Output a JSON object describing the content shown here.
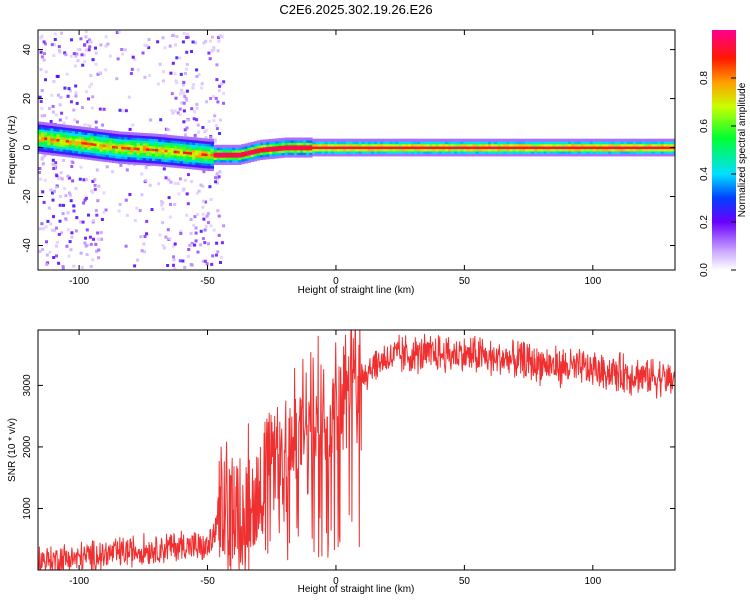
{
  "title": "C2E6.2025.302.19.26.E26",
  "chart_data": [
    {
      "type": "heatmap",
      "name": "spectrogram",
      "xlabel": "Height of straight line (km)",
      "ylabel": "Frequency (Hz)",
      "xlim": [
        -116,
        132
      ],
      "ylim": [
        -50,
        48
      ],
      "xticks": [
        -100,
        -50,
        0,
        50,
        100
      ],
      "yticks": [
        -40,
        -20,
        0,
        20,
        40
      ],
      "ridge": {
        "description": "frequency of the dominant spectral peak vs height",
        "x": [
          -116,
          -100,
          -85,
          -70,
          -60,
          -50,
          -45,
          -38,
          -30,
          -20,
          -10,
          0,
          50,
          100,
          132
        ],
        "y": [
          4,
          2,
          0,
          -1,
          -2,
          -3,
          -3,
          -3,
          -1,
          0,
          0,
          0,
          0,
          0,
          0
        ]
      }
    },
    {
      "type": "colorbar",
      "label": "Normalized spectral amplitude",
      "range": [
        0.0,
        1.0
      ],
      "ticks": [
        "0.0",
        "0.2",
        "0.4",
        "0.6",
        "0.8"
      ]
    },
    {
      "type": "line",
      "name": "snr",
      "xlabel": "Height of straight line (km)",
      "ylabel": "SNR (10 * v/v)",
      "xlim": [
        -116,
        132
      ],
      "ylim": [
        0,
        3900
      ],
      "xticks": [
        -100,
        -50,
        0,
        50,
        100
      ],
      "yticks": [
        1000,
        2000,
        3000
      ],
      "color": "#f03030",
      "envelope": {
        "x": [
          -116,
          -100,
          -90,
          -80,
          -70,
          -60,
          -50,
          -45,
          -43,
          -35,
          -28,
          -20,
          -10,
          0,
          10,
          20,
          30,
          50,
          70,
          90,
          110,
          132
        ],
        "y": [
          150,
          200,
          250,
          300,
          350,
          400,
          350,
          800,
          1000,
          1100,
          1500,
          1900,
          2300,
          2800,
          3200,
          3450,
          3500,
          3500,
          3400,
          3300,
          3200,
          3100
        ]
      }
    }
  ]
}
